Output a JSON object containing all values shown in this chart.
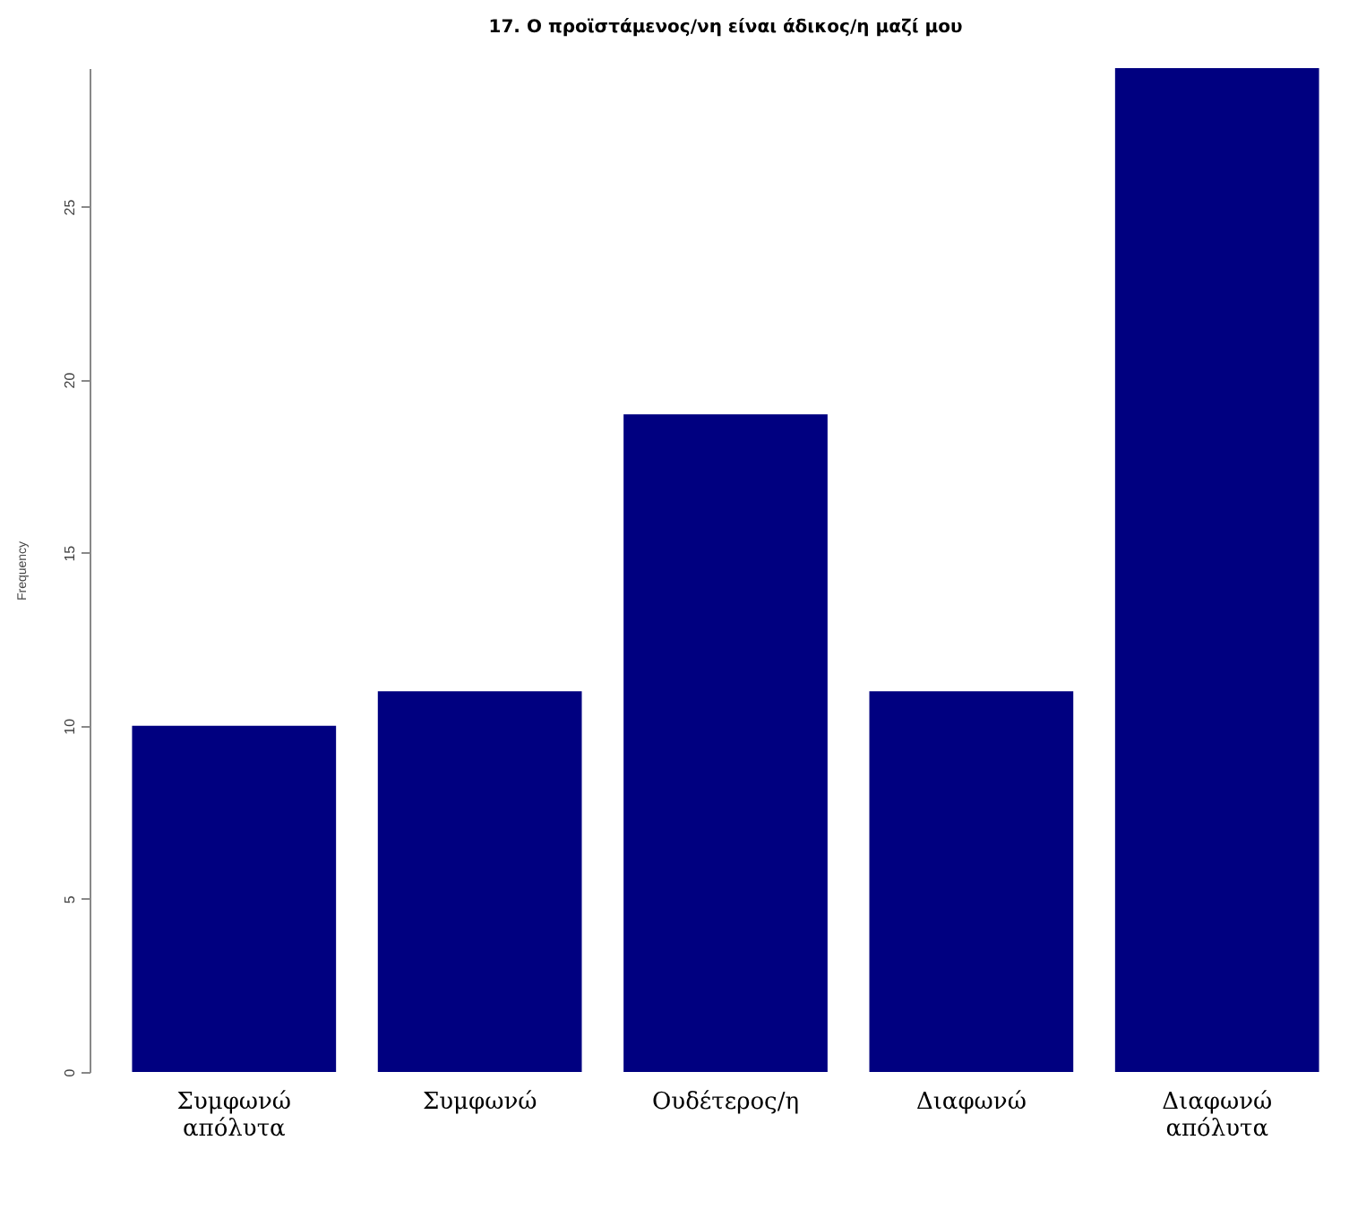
{
  "chart_data": {
    "type": "bar",
    "title": "17. Ο προϊστάμενος/νη είναι άδικος/η μαζί μου",
    "ylabel": "Frequency",
    "categories": [
      "Συμφωνώ απόλυτα",
      "Συμφωνώ",
      "Ουδέτερος/η",
      "Διαφωνώ",
      "Διαφωνώ απόλυτα"
    ],
    "values": [
      10,
      11,
      19,
      11,
      29
    ],
    "color": "#000080",
    "ylim": [
      0,
      29
    ],
    "yticks": [
      0,
      5,
      10,
      15,
      20,
      25
    ],
    "grid": false
  }
}
